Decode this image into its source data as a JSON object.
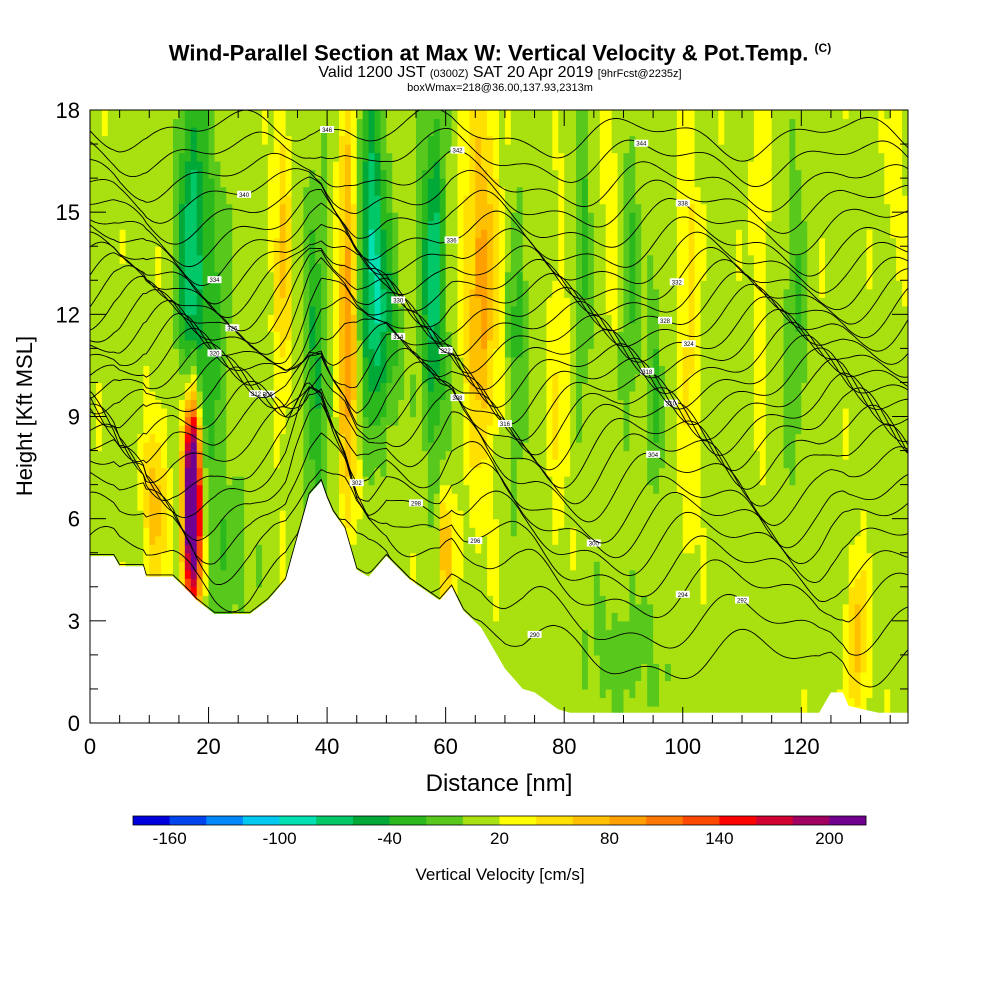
{
  "header": {
    "title": "Wind-Parallel Section at Max W: Vertical Velocity & Pot.Temp.",
    "title_mark": "(C)",
    "subtitle_a": "Valid 1200 JST",
    "subtitle_b": "(0300Z)",
    "subtitle_c": "SAT 20 Apr 2019",
    "subtitle_d": "[9hrFcst@2235z]",
    "note": "boxWmax=218@36.00,137.93,2313m"
  },
  "chart_data": {
    "type": "heatmap",
    "xlabel": "Distance [nm]",
    "ylabel": "Height [Kft MSL]",
    "xlim": [
      0,
      138
    ],
    "ylim": [
      0,
      18
    ],
    "x_ticks": [
      0,
      20,
      40,
      60,
      80,
      100,
      120
    ],
    "y_ticks": [
      0,
      3,
      6,
      9,
      12,
      15,
      18
    ],
    "colorbar": {
      "label": "Vertical Velocity [cm/s]",
      "tick_labels": [
        -160,
        -100,
        -40,
        20,
        80,
        140,
        200
      ],
      "min": -180,
      "max": 220,
      "colors": [
        "#0000dd",
        "#0044ee",
        "#0088ff",
        "#00c8f0",
        "#00e0b0",
        "#00c868",
        "#00a838",
        "#2ab81c",
        "#58c81c",
        "#a8e010",
        "#ffff00",
        "#ffe000",
        "#ffc000",
        "#ffa000",
        "#ff7800",
        "#ff4800",
        "#ff0000",
        "#d00030",
        "#a00060",
        "#700090"
      ]
    },
    "terrain_profile": {
      "x": [
        0,
        4,
        5,
        9,
        9.5,
        14,
        17,
        18,
        21,
        22,
        27,
        30,
        33,
        37,
        39,
        40,
        41,
        43,
        45,
        47,
        50,
        54,
        59,
        61,
        63,
        66,
        70,
        73,
        75,
        79,
        81,
        83,
        88,
        92,
        95,
        100,
        105,
        112,
        117,
        118,
        123,
        125,
        127,
        128,
        133,
        136,
        138
      ],
      "y": [
        4.9,
        4.9,
        4.6,
        4.6,
        4.3,
        4.3,
        3.8,
        3.6,
        3.2,
        3.2,
        3.2,
        3.6,
        4.2,
        6.7,
        7.1,
        6.6,
        6.2,
        5.7,
        4.5,
        4.3,
        4.9,
        4.2,
        3.6,
        4.0,
        3.3,
        2.8,
        1.6,
        1.0,
        0.9,
        0.4,
        0.3,
        0.3,
        0.3,
        0.3,
        0.3,
        0.3,
        0.3,
        0.3,
        0.3,
        0.3,
        0.3,
        0.9,
        0.9,
        0.5,
        0.3,
        0.3,
        0.3
      ]
    },
    "velocity_field": {
      "background": 12,
      "features": [
        {
          "x": 17.3,
          "y": 6.8,
          "w": 1.3,
          "h": 2.6,
          "value": 218
        },
        {
          "x": 17.3,
          "y": 5.8,
          "w": 1.8,
          "h": 4.0,
          "value": 120
        },
        {
          "x": 11.0,
          "y": 6.5,
          "w": 2.0,
          "h": 2.5,
          "value": 60
        },
        {
          "x": 17.0,
          "y": 13.5,
          "w": 2.2,
          "h": 5.0,
          "value": -80
        },
        {
          "x": 20.0,
          "y": 10.0,
          "w": 3.0,
          "h": 8.0,
          "value": -40
        },
        {
          "x": 32.5,
          "y": 13.5,
          "w": 1.5,
          "h": 4.5,
          "value": 50
        },
        {
          "x": 38.0,
          "y": 10.5,
          "w": 1.8,
          "h": 5.0,
          "value": -55
        },
        {
          "x": 43.5,
          "y": 12.0,
          "w": 1.6,
          "h": 6.0,
          "value": 85
        },
        {
          "x": 47.5,
          "y": 14.0,
          "w": 2.2,
          "h": 4.5,
          "value": -90
        },
        {
          "x": 50.0,
          "y": 11.5,
          "w": 2.5,
          "h": 3.0,
          "value": -45
        },
        {
          "x": 58.0,
          "y": 13.0,
          "w": 2.0,
          "h": 5.0,
          "value": -85
        },
        {
          "x": 60.0,
          "y": 5.2,
          "w": 1.3,
          "h": 1.5,
          "value": 70
        },
        {
          "x": 66.0,
          "y": 13.0,
          "w": 2.8,
          "h": 5.5,
          "value": 75
        },
        {
          "x": 72.0,
          "y": 11.0,
          "w": 1.5,
          "h": 4.0,
          "value": -40
        },
        {
          "x": 79.0,
          "y": 10.0,
          "w": 1.5,
          "h": 5.0,
          "value": 28
        },
        {
          "x": 83.0,
          "y": 14.0,
          "w": 1.5,
          "h": 4.0,
          "value": -40
        },
        {
          "x": 88.0,
          "y": 15.0,
          "w": 1.8,
          "h": 3.0,
          "value": 25
        },
        {
          "x": 91.0,
          "y": 13.0,
          "w": 1.5,
          "h": 4.0,
          "value": -40
        },
        {
          "x": 95.0,
          "y": 10.0,
          "w": 1.5,
          "h": 3.5,
          "value": -35
        },
        {
          "x": 101.0,
          "y": 12.0,
          "w": 1.8,
          "h": 6.0,
          "value": 35
        },
        {
          "x": 113.0,
          "y": 13.0,
          "w": 1.5,
          "h": 5.0,
          "value": 25
        },
        {
          "x": 119.0,
          "y": 12.0,
          "w": 2.0,
          "h": 5.0,
          "value": -30
        },
        {
          "x": 129.5,
          "y": 2.5,
          "w": 1.8,
          "h": 2.2,
          "value": 60
        },
        {
          "x": 136.0,
          "y": 16.0,
          "w": 1.5,
          "h": 2.5,
          "value": 25
        },
        {
          "x": 90.0,
          "y": 2.0,
          "w": 8.0,
          "h": 2.0,
          "value": -20
        },
        {
          "x": 25.0,
          "y": 5.0,
          "w": 3.0,
          "h": 2.0,
          "value": -25
        }
      ]
    },
    "isentropes": [
      {
        "label": "290",
        "label_x": 75,
        "base": 1.8
      },
      {
        "label": "292",
        "label_x": 110,
        "base": 2.8
      },
      {
        "label": "294",
        "label_x": 100,
        "base": 3.8
      },
      {
        "label": "296",
        "label_x": 65,
        "base": 4.5
      },
      {
        "label": "298",
        "label_x": 55,
        "base": 5.2
      },
      {
        "label": "300",
        "label_x": 85,
        "base": 5.8
      },
      {
        "label": "302",
        "label_x": 45,
        "base": 6.3
      },
      {
        "label": "304",
        "label_x": 95,
        "base": 7.0
      },
      {
        "label": "306",
        "label_x": 30,
        "base": 7.6
      },
      {
        "label": "308",
        "label_x": 62,
        "base": 8.1
      },
      {
        "label": "310",
        "label_x": 98,
        "base": 8.6
      },
      {
        "label": "312",
        "label_x": 28,
        "base": 9.0
      },
      {
        "label": "314",
        "label_x": 52,
        "base": 9.4
      },
      {
        "label": "316",
        "label_x": 70,
        "base": 9.8
      },
      {
        "label": "318",
        "label_x": 94,
        "base": 10.2
      },
      {
        "label": "320",
        "label_x": 21,
        "base": 10.6
      },
      {
        "label": "322",
        "label_x": 60,
        "base": 11.0
      },
      {
        "label": "324",
        "label_x": 101,
        "base": 11.4
      },
      {
        "label": "326",
        "label_x": 24,
        "base": 11.8
      },
      {
        "label": "328",
        "label_x": 97,
        "base": 12.2
      },
      {
        "label": "330",
        "label_x": 52,
        "base": 12.6
      },
      {
        "label": "332",
        "label_x": 99,
        "base": 13.0
      },
      {
        "label": "334",
        "label_x": 21,
        "base": 13.5
      },
      {
        "label": "336",
        "label_x": 61,
        "base": 14.0
      },
      {
        "label": "338",
        "label_x": 100,
        "base": 14.6
      },
      {
        "label": "340",
        "label_x": 26,
        "base": 15.2
      },
      {
        "label": "342",
        "label_x": 62,
        "base": 15.8
      },
      {
        "label": "344",
        "label_x": 93,
        "base": 16.5
      },
      {
        "label": "346",
        "label_x": 40,
        "base": 17.2
      }
    ]
  }
}
